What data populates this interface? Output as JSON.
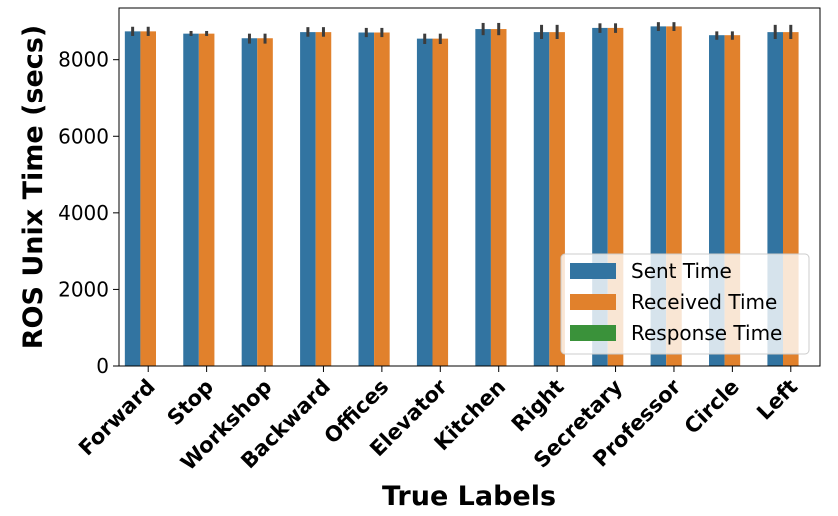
{
  "chart_data": {
    "type": "bar",
    "title": "",
    "xlabel": "True Labels",
    "ylabel": "ROS Unix Time (secs)",
    "ylim": [
      0,
      9350
    ],
    "yticks": [
      0,
      2000,
      4000,
      6000,
      8000
    ],
    "categories": [
      "Forward",
      "Stop",
      "Workshop",
      "Backward",
      "Offices",
      "Elevator",
      "Kitchen",
      "Right",
      "Secretary",
      "Professor",
      "Circle",
      "Left"
    ],
    "series": [
      {
        "name": "Sent Time",
        "color": "#3274a1",
        "values": [
          8740,
          8680,
          8560,
          8720,
          8710,
          8550,
          8800,
          8720,
          8830,
          8870,
          8640,
          8720
        ],
        "err": [
          [
            8620,
            8860
          ],
          [
            8620,
            8750
          ],
          [
            8420,
            8680
          ],
          [
            8600,
            8850
          ],
          [
            8590,
            8830
          ],
          [
            8410,
            8680
          ],
          [
            8640,
            8960
          ],
          [
            8540,
            8910
          ],
          [
            8700,
            8950
          ],
          [
            8750,
            8980
          ],
          [
            8520,
            8740
          ],
          [
            8540,
            8910
          ]
        ]
      },
      {
        "name": "Received Time",
        "color": "#e1812c",
        "values": [
          8740,
          8680,
          8560,
          8720,
          8710,
          8550,
          8800,
          8720,
          8830,
          8870,
          8640,
          8720
        ],
        "err": [
          [
            8620,
            8860
          ],
          [
            8620,
            8750
          ],
          [
            8420,
            8680
          ],
          [
            8600,
            8850
          ],
          [
            8590,
            8830
          ],
          [
            8410,
            8680
          ],
          [
            8640,
            8960
          ],
          [
            8540,
            8910
          ],
          [
            8700,
            8950
          ],
          [
            8750,
            8980
          ],
          [
            8520,
            8740
          ],
          [
            8540,
            8910
          ]
        ]
      },
      {
        "name": "Response Time",
        "color": "#3a923a",
        "values": [
          0,
          0,
          0,
          0,
          0,
          0,
          0,
          0,
          0,
          0,
          0,
          0
        ],
        "err": []
      }
    ],
    "legend": {
      "placement": "bottom-right",
      "items": [
        "Sent Time",
        "Received Time",
        "Response Time"
      ]
    },
    "grid": false,
    "errorbar_color": "#3c3c3c"
  }
}
